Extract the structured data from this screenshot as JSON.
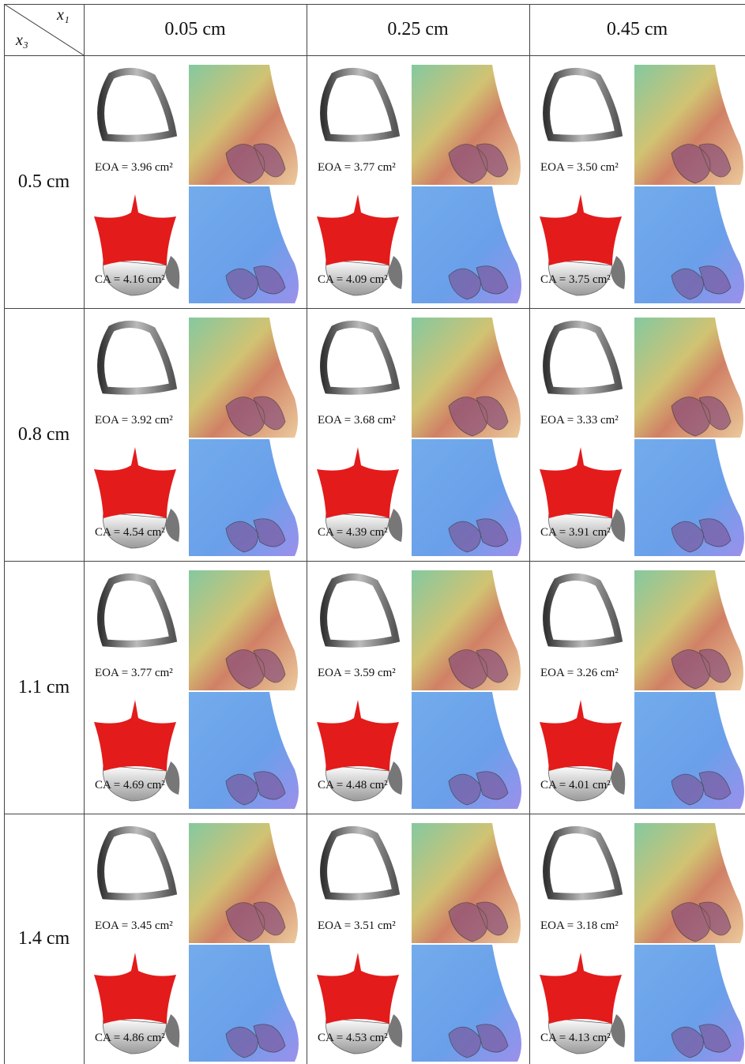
{
  "table": {
    "corner": {
      "top": "x₁",
      "bottom": "x₃"
    },
    "columns": [
      "0.05 cm",
      "0.25 cm",
      "0.45 cm"
    ],
    "rows": [
      {
        "label": "0.5 cm",
        "cells": [
          {
            "eoa": "EOA = 3.96 cm²",
            "ca": "CA = 4.16 cm²"
          },
          {
            "eoa": "EOA = 3.77 cm²",
            "ca": "CA = 4.09 cm²"
          },
          {
            "eoa": "EOA = 3.50 cm²",
            "ca": "CA = 3.75 cm²"
          }
        ]
      },
      {
        "label": "0.8 cm",
        "cells": [
          {
            "eoa": "EOA = 3.92 cm²",
            "ca": "CA = 4.54 cm²"
          },
          {
            "eoa": "EOA = 3.68 cm²",
            "ca": "CA = 4.39 cm²"
          },
          {
            "eoa": "EOA = 3.33 cm²",
            "ca": "CA = 3.91 cm²"
          }
        ]
      },
      {
        "label": "1.1 cm",
        "cells": [
          {
            "eoa": "EOA = 3.77 cm²",
            "ca": "CA = 4.69 cm²"
          },
          {
            "eoa": "EOA = 3.59 cm²",
            "ca": "CA = 4.48 cm²"
          },
          {
            "eoa": "EOA = 3.26 cm²",
            "ca": "CA = 4.01 cm²"
          }
        ]
      },
      {
        "label": "1.4 cm",
        "cells": [
          {
            "eoa": "EOA = 3.45 cm²",
            "ca": "CA = 4.86 cm²"
          },
          {
            "eoa": "EOA = 3.51 cm²",
            "ca": "CA = 4.53 cm²"
          },
          {
            "eoa": "EOA = 3.18 cm²",
            "ca": "CA = 4.13 cm²"
          }
        ]
      }
    ]
  }
}
